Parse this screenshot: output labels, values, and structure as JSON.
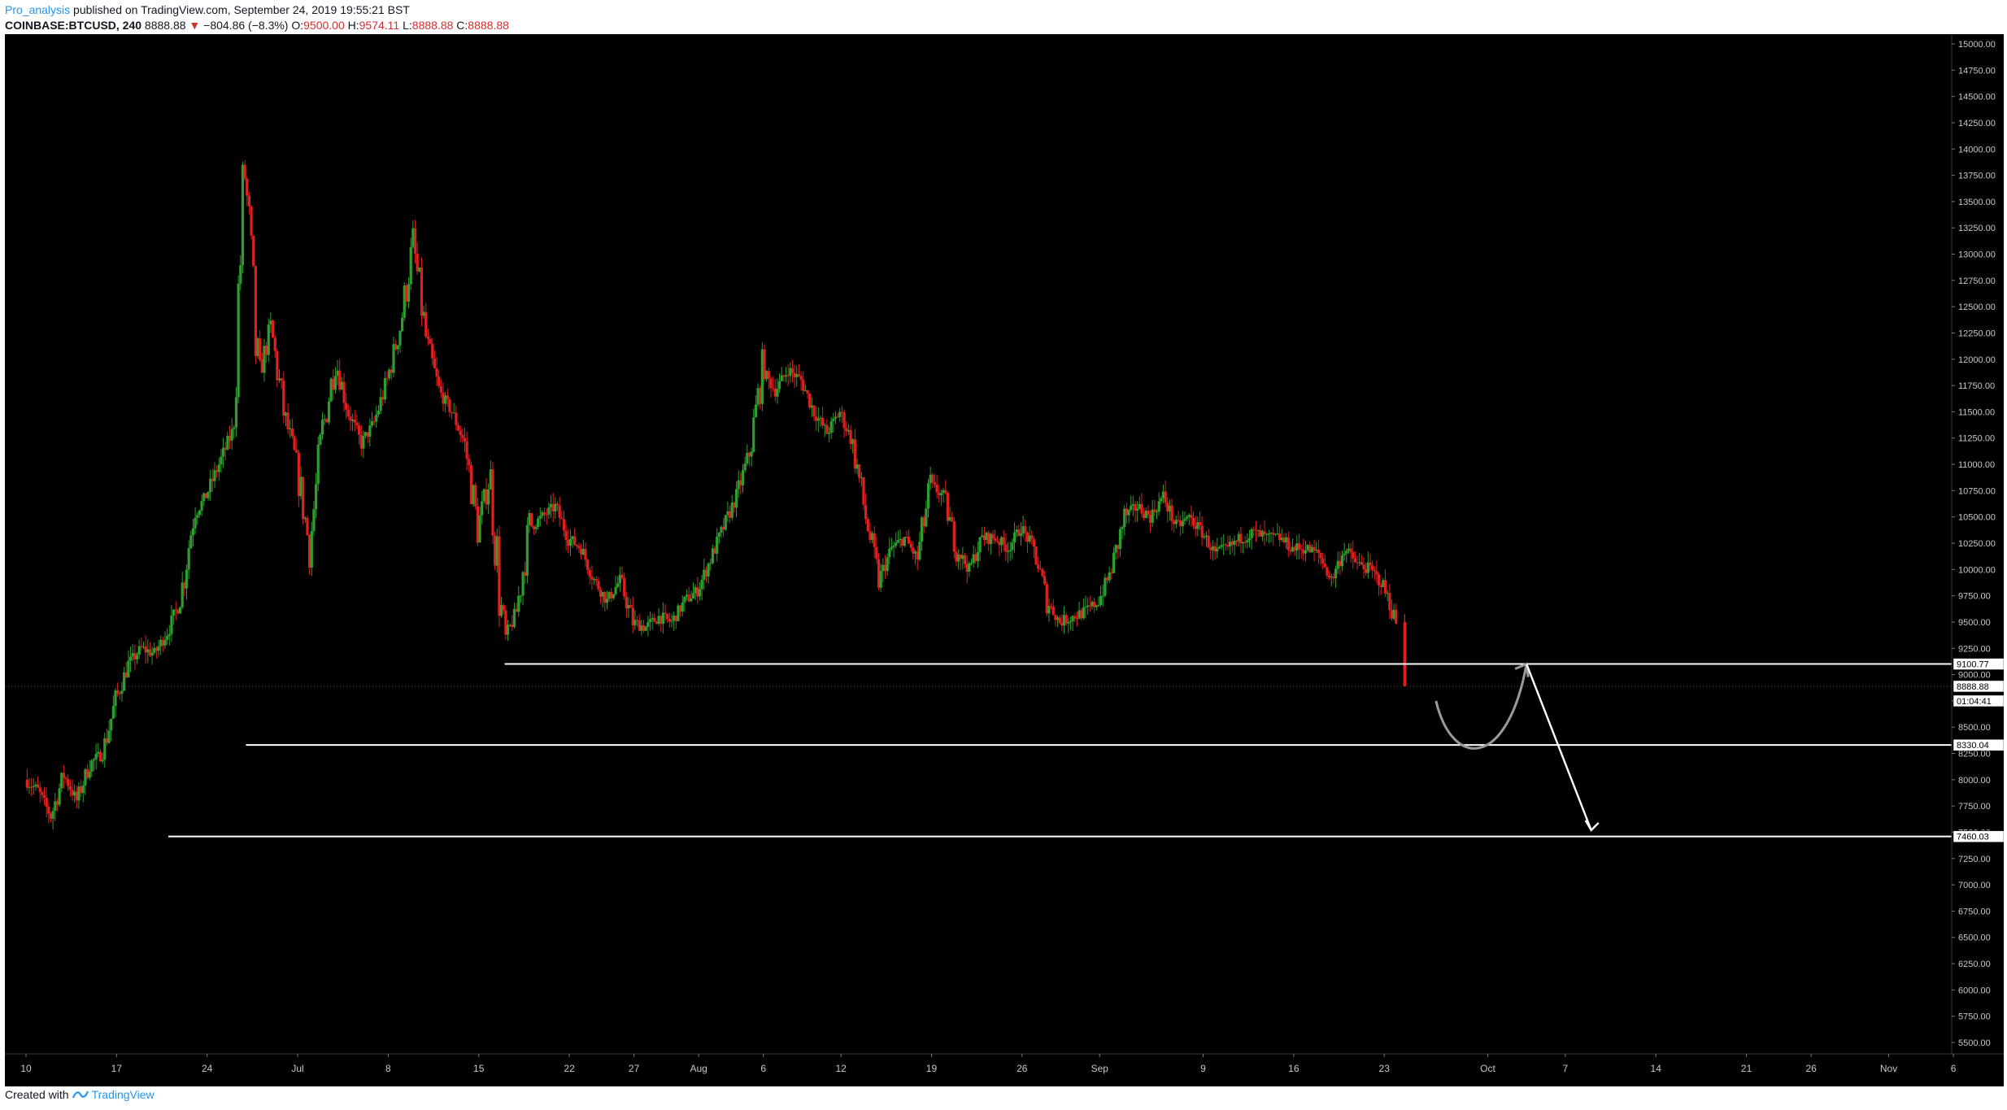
{
  "header": {
    "author": "Pro_analysis",
    "published_text": "published on TradingView.com, September 24, 2019 19:55:21 BST",
    "symbol": "COINBASE:BTCUSD, 240",
    "last": "8888.88",
    "change_arrow": "▼",
    "change": "−804.86 (−8.3%)",
    "o_label": "O:",
    "o_val": "9500.00",
    "h_label": "H:",
    "h_val": "9574.11",
    "l_label": "L:",
    "l_val": "8888.88",
    "c_label": "C:",
    "c_val": "8888.88"
  },
  "footer": {
    "created": "Created with",
    "brand": "TradingView"
  },
  "colors": {
    "background": "#000000",
    "up": "#2e9e2e",
    "down": "#e02020",
    "line": "#ffffff",
    "axis_text": "#c8c8c8"
  },
  "chart_data": {
    "type": "candlestick",
    "interval": "240",
    "y_axis": {
      "min": 5500,
      "max": 15000,
      "step": 250,
      "position": "right",
      "labels": [
        "15000.00",
        "14750.00",
        "14500.00",
        "14250.00",
        "14000.00",
        "13750.00",
        "13500.00",
        "13250.00",
        "13000.00",
        "12750.00",
        "12500.00",
        "12250.00",
        "12000.00",
        "11750.00",
        "11500.00",
        "11250.00",
        "11000.00",
        "10750.00",
        "10500.00",
        "10250.00",
        "10000.00",
        "9750.00",
        "9500.00",
        "9250.00",
        "9000.00",
        "8750.00",
        "8500.00",
        "8250.00",
        "8000.00",
        "7750.00",
        "7500.00",
        "7250.00",
        "7000.00",
        "6750.00",
        "6500.00",
        "6250.00",
        "6000.00",
        "5750.00",
        "5500.00"
      ]
    },
    "x_axis": {
      "range": [
        "2019-06-10",
        "2019-11-07"
      ],
      "ticks": [
        {
          "date": "2019-06-10",
          "label": "10"
        },
        {
          "date": "2019-06-17",
          "label": "17"
        },
        {
          "date": "2019-06-24",
          "label": "24"
        },
        {
          "date": "2019-07-01",
          "label": "Jul"
        },
        {
          "date": "2019-07-08",
          "label": "8"
        },
        {
          "date": "2019-07-15",
          "label": "15"
        },
        {
          "date": "2019-07-22",
          "label": "22"
        },
        {
          "date": "2019-07-27",
          "label": "27"
        },
        {
          "date": "2019-08-01",
          "label": "Aug"
        },
        {
          "date": "2019-08-06",
          "label": "6"
        },
        {
          "date": "2019-08-12",
          "label": "12"
        },
        {
          "date": "2019-08-19",
          "label": "19"
        },
        {
          "date": "2019-08-26",
          "label": "26"
        },
        {
          "date": "2019-09-01",
          "label": "Sep"
        },
        {
          "date": "2019-09-09",
          "label": "9"
        },
        {
          "date": "2019-09-16",
          "label": "16"
        },
        {
          "date": "2019-09-23",
          "label": "23"
        },
        {
          "date": "2019-10-01",
          "label": "Oct"
        },
        {
          "date": "2019-10-07",
          "label": "7"
        },
        {
          "date": "2019-10-14",
          "label": "14"
        },
        {
          "date": "2019-10-21",
          "label": "21"
        },
        {
          "date": "2019-10-26",
          "label": "26"
        },
        {
          "date": "2019-11-01",
          "label": "Nov"
        },
        {
          "date": "2019-11-06",
          "label": "6"
        }
      ]
    },
    "price_path": [
      [
        "2019-06-10",
        8000
      ],
      [
        "2019-06-11",
        7900
      ],
      [
        "2019-06-12",
        7650
      ],
      [
        "2019-06-13",
        8050
      ],
      [
        "2019-06-14",
        7800
      ],
      [
        "2019-06-15",
        8150
      ],
      [
        "2019-06-16",
        8250
      ],
      [
        "2019-06-17",
        8750
      ],
      [
        "2019-06-18",
        9100
      ],
      [
        "2019-06-19",
        9250
      ],
      [
        "2019-06-20",
        9200
      ],
      [
        "2019-06-21",
        9400
      ],
      [
        "2019-06-22",
        9700
      ],
      [
        "2019-06-23",
        10500
      ],
      [
        "2019-06-24",
        10700
      ],
      [
        "2019-06-25",
        11000
      ],
      [
        "2019-06-26",
        11300
      ],
      [
        "2019-06-27",
        13800
      ],
      [
        "2019-06-28",
        11800
      ],
      [
        "2019-06-29",
        12300
      ],
      [
        "2019-06-30",
        11500
      ],
      [
        "2019-07-01",
        11000
      ],
      [
        "2019-07-02",
        10200
      ],
      [
        "2019-07-03",
        11300
      ],
      [
        "2019-07-04",
        12000
      ],
      [
        "2019-07-05",
        11500
      ],
      [
        "2019-07-06",
        11200
      ],
      [
        "2019-07-07",
        11400
      ],
      [
        "2019-07-08",
        11800
      ],
      [
        "2019-07-09",
        12300
      ],
      [
        "2019-07-10",
        13100
      ],
      [
        "2019-07-11",
        12200
      ],
      [
        "2019-07-12",
        11700
      ],
      [
        "2019-07-13",
        11500
      ],
      [
        "2019-07-14",
        11200
      ],
      [
        "2019-07-15",
        10400
      ],
      [
        "2019-07-16",
        10900
      ],
      [
        "2019-07-17",
        9300
      ],
      [
        "2019-07-18",
        9600
      ],
      [
        "2019-07-19",
        10400
      ],
      [
        "2019-07-20",
        10500
      ],
      [
        "2019-07-21",
        10600
      ],
      [
        "2019-07-22",
        10300
      ],
      [
        "2019-07-23",
        10200
      ],
      [
        "2019-07-24",
        9900
      ],
      [
        "2019-07-25",
        9700
      ],
      [
        "2019-07-26",
        9900
      ],
      [
        "2019-07-27",
        9500
      ],
      [
        "2019-07-28",
        9450
      ],
      [
        "2019-07-29",
        9550
      ],
      [
        "2019-07-30",
        9500
      ],
      [
        "2019-07-31",
        9700
      ],
      [
        "2019-08-01",
        9800
      ],
      [
        "2019-08-02",
        10100
      ],
      [
        "2019-08-03",
        10400
      ],
      [
        "2019-08-04",
        10700
      ],
      [
        "2019-08-05",
        11100
      ],
      [
        "2019-08-06",
        11900
      ],
      [
        "2019-08-07",
        11700
      ],
      [
        "2019-08-08",
        11900
      ],
      [
        "2019-08-09",
        11800
      ],
      [
        "2019-08-10",
        11500
      ],
      [
        "2019-08-11",
        11300
      ],
      [
        "2019-08-12",
        11500
      ],
      [
        "2019-08-13",
        11200
      ],
      [
        "2019-08-14",
        10500
      ],
      [
        "2019-08-15",
        9900
      ],
      [
        "2019-08-16",
        10200
      ],
      [
        "2019-08-17",
        10300
      ],
      [
        "2019-08-18",
        10100
      ],
      [
        "2019-08-19",
        10800
      ],
      [
        "2019-08-20",
        10700
      ],
      [
        "2019-08-21",
        10200
      ],
      [
        "2019-08-22",
        10000
      ],
      [
        "2019-08-23",
        10300
      ],
      [
        "2019-08-24",
        10300
      ],
      [
        "2019-08-25",
        10200
      ],
      [
        "2019-08-26",
        10400
      ],
      [
        "2019-08-27",
        10200
      ],
      [
        "2019-08-28",
        9700
      ],
      [
        "2019-08-29",
        9500
      ],
      [
        "2019-08-30",
        9550
      ],
      [
        "2019-08-31",
        9600
      ],
      [
        "2019-09-01",
        9700
      ],
      [
        "2019-09-02",
        10000
      ],
      [
        "2019-09-03",
        10500
      ],
      [
        "2019-09-04",
        10600
      ],
      [
        "2019-09-05",
        10500
      ],
      [
        "2019-09-06",
        10700
      ],
      [
        "2019-09-07",
        10400
      ],
      [
        "2019-09-08",
        10500
      ],
      [
        "2019-09-09",
        10350
      ],
      [
        "2019-09-10",
        10150
      ],
      [
        "2019-09-11",
        10200
      ],
      [
        "2019-09-12",
        10300
      ],
      [
        "2019-09-13",
        10350
      ],
      [
        "2019-09-14",
        10300
      ],
      [
        "2019-09-15",
        10300
      ],
      [
        "2019-09-16",
        10200
      ],
      [
        "2019-09-17",
        10200
      ],
      [
        "2019-09-18",
        10150
      ],
      [
        "2019-09-19",
        9900
      ],
      [
        "2019-09-20",
        10200
      ],
      [
        "2019-09-21",
        10050
      ],
      [
        "2019-09-22",
        10000
      ],
      [
        "2019-09-23",
        9850
      ],
      [
        "2019-09-24",
        9500
      ]
    ],
    "last_drop": {
      "date": "2019-09-24",
      "open": 9500,
      "high": 9574.11,
      "low": 8888.88,
      "close": 8888.88
    },
    "horizontal_levels": [
      {
        "price": 9100.77,
        "label": "9100.77",
        "from": "2019-07-17"
      },
      {
        "price": 8330.04,
        "label": "8330.04",
        "from": "2019-06-27"
      },
      {
        "price": 7460.03,
        "label": "7460.03",
        "from": "2019-06-21"
      }
    ],
    "price_tags": [
      {
        "price": 8888.88,
        "label": "8888.88"
      },
      {
        "label": "01:04:41"
      }
    ],
    "projection": {
      "curve": [
        [
          "2019-09-27",
          8750
        ],
        [
          "2019-09-30",
          8330
        ],
        [
          "2019-10-04",
          9100.77
        ]
      ],
      "arrow_down": [
        [
          "2019-10-04",
          9100.77
        ],
        [
          "2019-10-09",
          7520
        ]
      ]
    }
  }
}
